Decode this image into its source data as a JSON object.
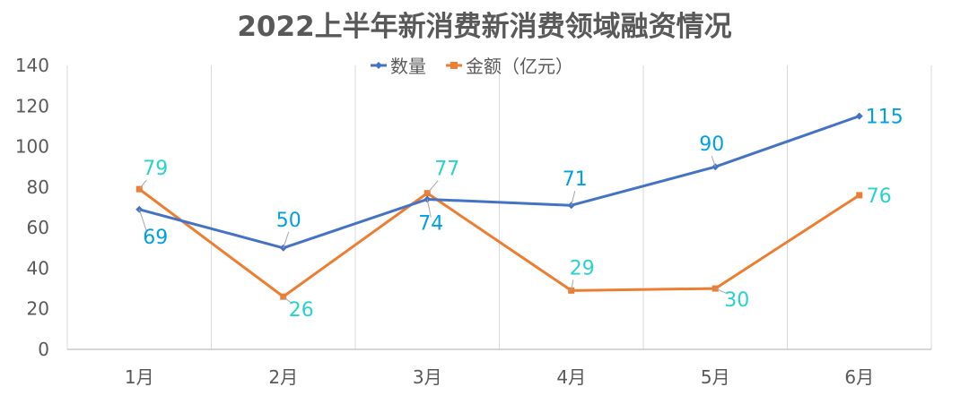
{
  "title": "2022上半年新消费新消费领域融资情况",
  "colors": {
    "count": "#4472C4",
    "amount": "#ED7D31",
    "count_label": "#00a0e9",
    "amount_label": "#27d4c8",
    "grid": "#d9d9d9",
    "axis": "#bfbfbf"
  },
  "chart_data": {
    "type": "line",
    "title": "2022上半年新消费新消费领域融资情况",
    "categories": [
      "1月",
      "2月",
      "3月",
      "4月",
      "5月",
      "6月"
    ],
    "series": [
      {
        "name": "数量",
        "values": [
          69,
          50,
          74,
          71,
          90,
          115
        ]
      },
      {
        "name": "金额（亿元）",
        "values": [
          79,
          26,
          77,
          29,
          30,
          76
        ]
      }
    ],
    "ylim": [
      0,
      140
    ],
    "yticks": [
      0,
      20,
      40,
      60,
      80,
      100,
      120,
      140
    ],
    "xlabel": "",
    "ylabel": "",
    "legend": "top-center",
    "grid": "vertical"
  }
}
